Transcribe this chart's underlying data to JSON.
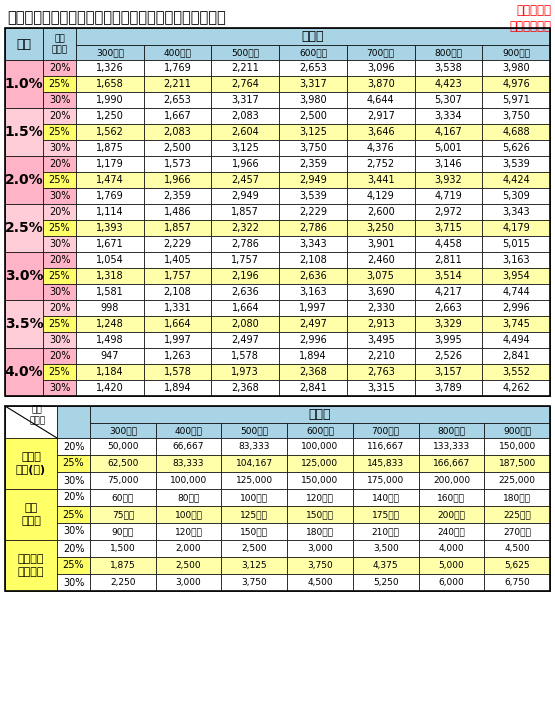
{
  "title": "金利別、年収負担率別　住宅ローン借入可能額（万円）",
  "subtitle": "２５年返済\n元利金等払い",
  "income_cols": [
    "300万円",
    "400万円",
    "500万円",
    "600万円",
    "700万円",
    "800万円",
    "900万円"
  ],
  "rates": [
    "1.0%",
    "1.5%",
    "2.0%",
    "2.5%",
    "3.0%",
    "3.5%",
    "4.0%"
  ],
  "burdens": [
    "20%",
    "25%",
    "30%"
  ],
  "table1_data": [
    [
      [
        1326,
        1769,
        2211,
        2653,
        3096,
        3538,
        3980
      ],
      [
        1658,
        2211,
        2764,
        3317,
        3870,
        4423,
        4976
      ],
      [
        1990,
        2653,
        3317,
        3980,
        4644,
        5307,
        5971
      ]
    ],
    [
      [
        1250,
        1667,
        2083,
        2500,
        2917,
        3334,
        3750
      ],
      [
        1562,
        2083,
        2604,
        3125,
        3646,
        4167,
        4688
      ],
      [
        1875,
        2500,
        3125,
        3750,
        4376,
        5001,
        5626
      ]
    ],
    [
      [
        1179,
        1573,
        1966,
        2359,
        2752,
        3146,
        3539
      ],
      [
        1474,
        1966,
        2457,
        2949,
        3441,
        3932,
        4424
      ],
      [
        1769,
        2359,
        2949,
        3539,
        4129,
        4719,
        5309
      ]
    ],
    [
      [
        1114,
        1486,
        1857,
        2229,
        2600,
        2972,
        3343
      ],
      [
        1393,
        1857,
        2322,
        2786,
        3250,
        3715,
        4179
      ],
      [
        1671,
        2229,
        2786,
        3343,
        3901,
        4458,
        5015
      ]
    ],
    [
      [
        1054,
        1405,
        1757,
        2108,
        2460,
        2811,
        3163
      ],
      [
        1318,
        1757,
        2196,
        2636,
        3075,
        3514,
        3954
      ],
      [
        1581,
        2108,
        2636,
        3163,
        3690,
        4217,
        4744
      ]
    ],
    [
      [
        998,
        1331,
        1664,
        1997,
        2330,
        2663,
        2996
      ],
      [
        1248,
        1664,
        2080,
        2497,
        2913,
        3329,
        3745
      ],
      [
        1498,
        1997,
        2497,
        2996,
        3495,
        3995,
        4494
      ]
    ],
    [
      [
        947,
        1263,
        1578,
        1894,
        2210,
        2526,
        2841
      ],
      [
        1184,
        1578,
        1973,
        2368,
        2763,
        3157,
        3552
      ],
      [
        1420,
        1894,
        2368,
        2841,
        3315,
        3789,
        4262
      ]
    ]
  ],
  "table2_row_labels": [
    "毎月返\n済額(円)",
    "年間\n返済額",
    "総返済額\n（万円）"
  ],
  "table2_data": [
    [
      [
        "50,000",
        "66,667",
        "83,333",
        "100,000",
        "116,667",
        "133,333",
        "150,000"
      ],
      [
        "62,500",
        "83,333",
        "104,167",
        "125,000",
        "145,833",
        "166,667",
        "187,500"
      ],
      [
        "75,000",
        "100,000",
        "125,000",
        "150,000",
        "175,000",
        "200,000",
        "225,000"
      ]
    ],
    [
      [
        "60万円",
        "80万円",
        "100万円",
        "120万円",
        "140万円",
        "160万円",
        "180万円"
      ],
      [
        "75万円",
        "100万円",
        "125万円",
        "150万円",
        "175万円",
        "200万円",
        "225万円"
      ],
      [
        "90万円",
        "120万円",
        "150万円",
        "180万円",
        "210万円",
        "240万円",
        "270万円"
      ]
    ],
    [
      [
        "1,500",
        "2,000",
        "2,500",
        "3,000",
        "3,500",
        "4,000",
        "4,500"
      ],
      [
        "1,875",
        "2,500",
        "3,125",
        "3,750",
        "4,375",
        "5,000",
        "5,625"
      ],
      [
        "2,250",
        "3,000",
        "3,750",
        "4,500",
        "5,250",
        "6,000",
        "6,750"
      ]
    ]
  ],
  "color_pink": "#FFB3C6",
  "color_light_pink": "#FFCDD8",
  "color_yellow": "#FFFF66",
  "color_light_yellow": "#FFFFAA",
  "color_blue_header": "#A8D4E6",
  "color_white": "#FFFFFF",
  "color_red": "#FF0000",
  "fig_w": 5.55,
  "fig_h": 7.14,
  "dpi": 100
}
